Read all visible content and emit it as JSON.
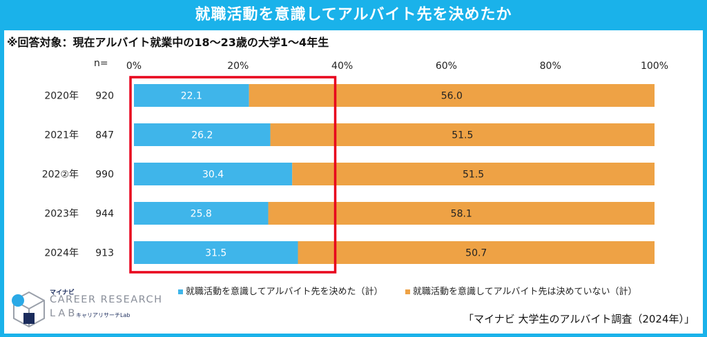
{
  "title": "就職活動を意識してアルバイト先を決めたか",
  "subtitle": "※回答対象：現在アルバイト就業中の18〜23歳の大学1〜4年生",
  "n_label": "n=",
  "source": "「マイナビ 大学生のアルバイト調査（2024年）」",
  "logo": {
    "small": "マイナビ",
    "main": "CAREER RESEARCH",
    "lab": "LAB",
    "kana": "キャリアリサーチLab"
  },
  "colors": {
    "header_bg": "#1ab2ea",
    "series_blue": "#3fb5ea",
    "series_orange": "#eea245",
    "highlight": "#e8001c"
  },
  "chart_data": {
    "type": "bar",
    "orientation": "horizontal",
    "stacked": true,
    "categories": [
      "2020年",
      "2021年",
      "202②年",
      "2023年",
      "2024年"
    ],
    "n": [
      "920",
      "847",
      "990",
      "944",
      "913"
    ],
    "series": [
      {
        "name": "就職活動を意識してアルバイト先を決めた（計）",
        "values": [
          22.1,
          26.2,
          30.4,
          25.8,
          31.5
        ],
        "labels": [
          "22.1",
          "26.2",
          "30.4",
          "25.8",
          "31.5"
        ]
      },
      {
        "name": "就職活動を意識してアルバイト先は決めていない（計）",
        "values": [
          56.0,
          51.5,
          51.5,
          58.1,
          50.7
        ],
        "labels": [
          "56.0",
          "51.5",
          "51.5",
          "58.1",
          "50.7"
        ]
      }
    ],
    "xlim": [
      0,
      100
    ],
    "xticks": [
      "0%",
      "20%",
      "40%",
      "60%",
      "80%",
      "100%"
    ],
    "legend_position": "bottom",
    "highlight_box_range": [
      0,
      38
    ]
  }
}
